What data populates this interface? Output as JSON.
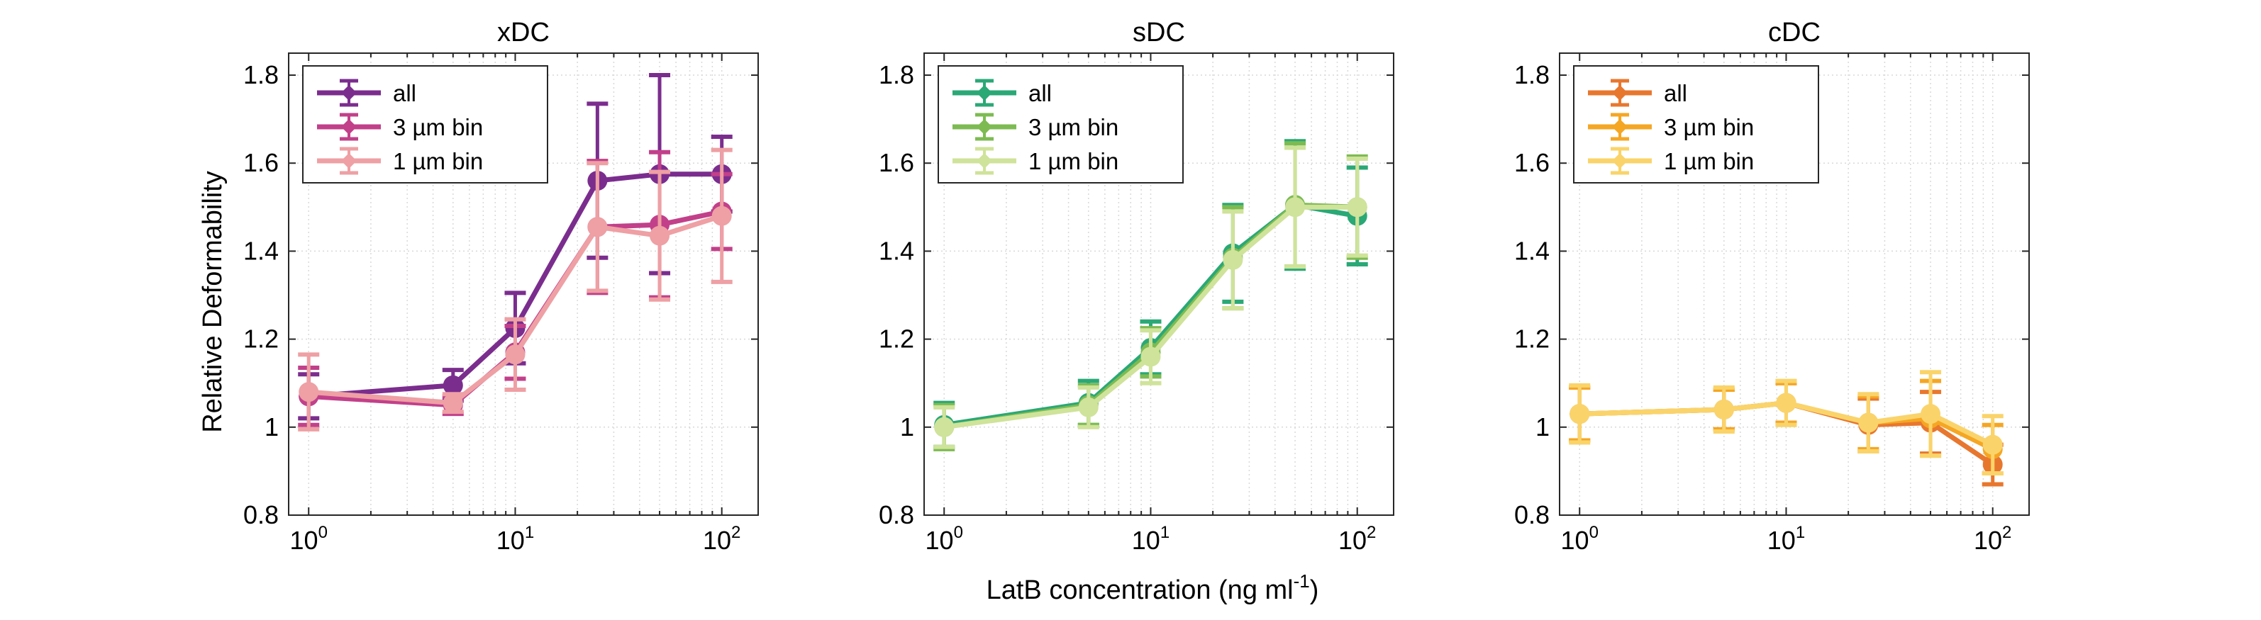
{
  "figure": {
    "ylabel": "Relative Deformability",
    "xlabel_main": "LatB concentration (ng ml",
    "xlabel_sup": "-1",
    "xlabel_end": ")"
  },
  "chart_data": [
    {
      "type": "line",
      "title": "xDC",
      "xscale": "log",
      "xlim": [
        0.8,
        150
      ],
      "ylim": [
        0.8,
        1.85
      ],
      "yticks": [
        0.8,
        1,
        1.2,
        1.4,
        1.6,
        1.8
      ],
      "yticklabels": [
        "0.8",
        "1",
        "1.2",
        "1.4",
        "1.6",
        "1.8"
      ],
      "xtick_labels": [
        {
          "base": "10",
          "exp": "0"
        },
        {
          "base": "10",
          "exp": "1"
        },
        {
          "base": "10",
          "exp": "2"
        }
      ],
      "grid": true,
      "legend_position": "top-left",
      "series": [
        {
          "name": "all",
          "color": "#7b2d8e",
          "x": [
            1,
            5,
            10,
            25,
            50,
            100
          ],
          "y": [
            1.07,
            1.095,
            1.225,
            1.56,
            1.575,
            1.575
          ],
          "err": [
            0.05,
            0.035,
            0.08,
            0.175,
            0.225,
            0.085
          ]
        },
        {
          "name": "3 µm bin",
          "color": "#c2408a",
          "x": [
            1,
            5,
            10,
            25,
            50,
            100
          ],
          "y": [
            1.07,
            1.05,
            1.17,
            1.455,
            1.46,
            1.49
          ],
          "err": [
            0.065,
            0.02,
            0.06,
            0.15,
            0.165,
            0.085
          ]
        },
        {
          "name": "1 µm bin",
          "color": "#eea0a4",
          "x": [
            1,
            5,
            10,
            25,
            50,
            100
          ],
          "y": [
            1.08,
            1.055,
            1.165,
            1.455,
            1.435,
            1.48
          ],
          "err": [
            0.085,
            0.02,
            0.08,
            0.145,
            0.145,
            0.15
          ]
        }
      ]
    },
    {
      "type": "line",
      "title": "sDC",
      "xscale": "log",
      "xlim": [
        0.8,
        150
      ],
      "ylim": [
        0.8,
        1.85
      ],
      "yticks": [
        0.8,
        1,
        1.2,
        1.4,
        1.6,
        1.8
      ],
      "yticklabels": [
        "0.8",
        "1",
        "1.2",
        "1.4",
        "1.6",
        "1.8"
      ],
      "xtick_labels": [
        {
          "base": "10",
          "exp": "0"
        },
        {
          "base": "10",
          "exp": "1"
        },
        {
          "base": "10",
          "exp": "2"
        }
      ],
      "grid": true,
      "legend_position": "top-left",
      "series": [
        {
          "name": "all",
          "color": "#2aa876",
          "x": [
            1,
            5,
            10,
            25,
            50,
            100
          ],
          "y": [
            1.005,
            1.055,
            1.18,
            1.395,
            1.505,
            1.48
          ],
          "err": [
            0.05,
            0.05,
            0.06,
            0.11,
            0.145,
            0.11
          ]
        },
        {
          "name": "3 µm bin",
          "color": "#7dbb52",
          "x": [
            1,
            5,
            10,
            25,
            50,
            100
          ],
          "y": [
            1.0,
            1.05,
            1.17,
            1.385,
            1.505,
            1.5
          ],
          "err": [
            0.05,
            0.045,
            0.055,
            0.115,
            0.14,
            0.115
          ]
        },
        {
          "name": "1 µm bin",
          "color": "#cfe39a",
          "x": [
            1,
            5,
            10,
            25,
            50,
            100
          ],
          "y": [
            1.0,
            1.045,
            1.16,
            1.38,
            1.5,
            1.5
          ],
          "err": [
            0.045,
            0.045,
            0.06,
            0.11,
            0.135,
            0.11
          ]
        }
      ]
    },
    {
      "type": "line",
      "title": "cDC",
      "xscale": "log",
      "xlim": [
        0.8,
        150
      ],
      "ylim": [
        0.8,
        1.85
      ],
      "yticks": [
        0.8,
        1,
        1.2,
        1.4,
        1.6,
        1.8
      ],
      "yticklabels": [
        "0.8",
        "1",
        "1.2",
        "1.4",
        "1.6",
        "1.8"
      ],
      "xtick_labels": [
        {
          "base": "10",
          "exp": "0"
        },
        {
          "base": "10",
          "exp": "1"
        },
        {
          "base": "10",
          "exp": "2"
        }
      ],
      "grid": true,
      "legend_position": "top-left",
      "series": [
        {
          "name": "all",
          "color": "#e8772e",
          "x": [
            1,
            5,
            10,
            25,
            50,
            100
          ],
          "y": [
            1.03,
            1.04,
            1.055,
            1.005,
            1.01,
            0.915
          ],
          "err": [
            0.06,
            0.045,
            0.045,
            0.06,
            0.07,
            0.045
          ]
        },
        {
          "name": "3 µm bin",
          "color": "#f5a623",
          "x": [
            1,
            5,
            10,
            25,
            50,
            100
          ],
          "y": [
            1.03,
            1.04,
            1.055,
            1.01,
            1.02,
            0.95
          ],
          "err": [
            0.06,
            0.045,
            0.045,
            0.06,
            0.085,
            0.055
          ]
        },
        {
          "name": "1 µm bin",
          "color": "#fad46a",
          "x": [
            1,
            5,
            10,
            25,
            50,
            100
          ],
          "y": [
            1.03,
            1.04,
            1.055,
            1.01,
            1.03,
            0.96
          ],
          "err": [
            0.065,
            0.05,
            0.05,
            0.065,
            0.095,
            0.065
          ]
        }
      ]
    }
  ]
}
